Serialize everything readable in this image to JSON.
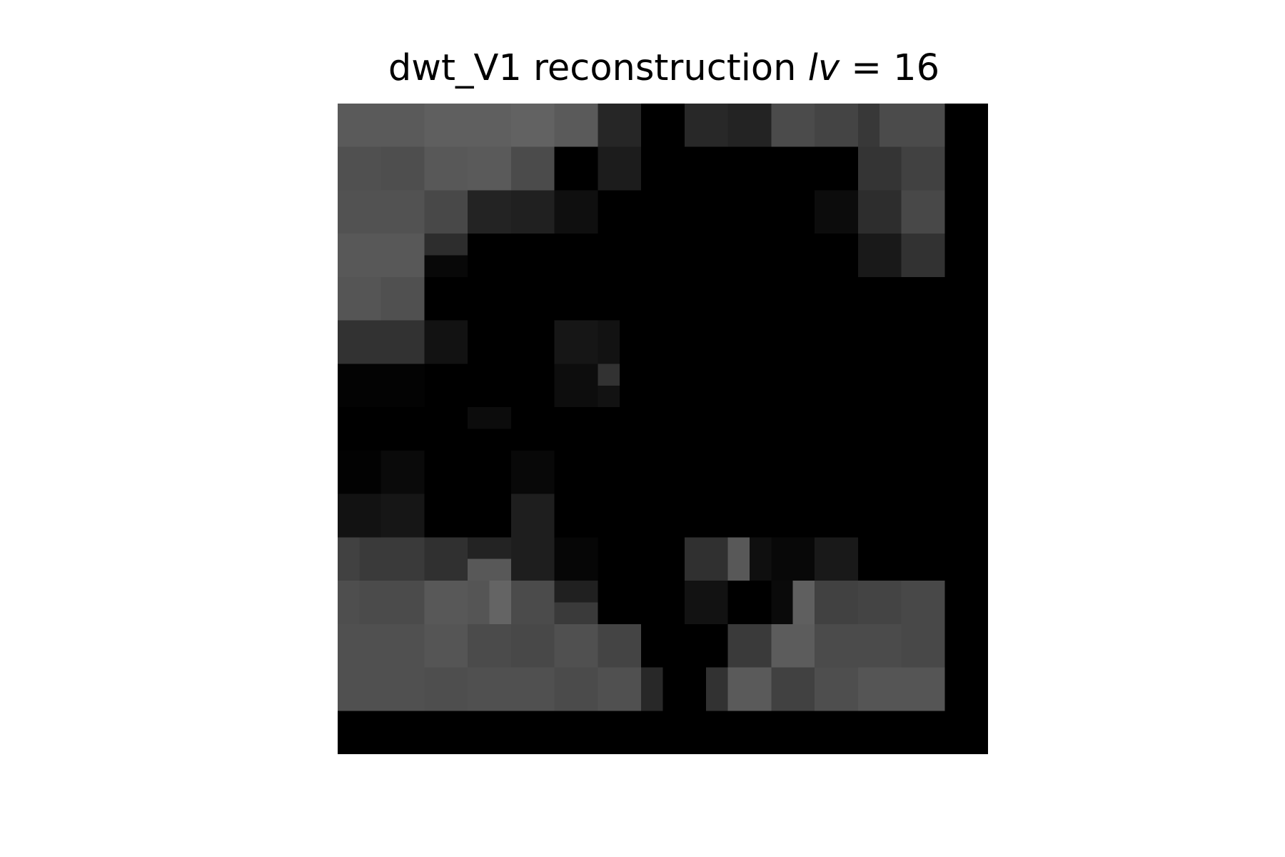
{
  "chart_data": {
    "type": "heatmap",
    "title": {
      "prefix": "dwt_V1 reconstruction ",
      "symbol": "lv",
      "relation": " = ",
      "value": "16"
    },
    "colormap": "gray",
    "axes": "off",
    "grid": false,
    "rows": 30,
    "cols": 30,
    "values": [
      [
        90,
        90,
        90,
        90,
        95,
        95,
        95,
        95,
        98,
        98,
        90,
        90,
        38,
        38,
        0,
        0,
        40,
        40,
        35,
        35,
        75,
        75,
        68,
        68,
        56,
        75,
        75,
        75,
        0,
        0
      ],
      [
        90,
        90,
        90,
        90,
        95,
        95,
        95,
        95,
        98,
        98,
        90,
        90,
        38,
        38,
        0,
        0,
        40,
        40,
        35,
        35,
        75,
        75,
        68,
        68,
        56,
        75,
        75,
        75,
        0,
        0
      ],
      [
        80,
        80,
        78,
        78,
        88,
        88,
        90,
        90,
        75,
        75,
        0,
        0,
        28,
        28,
        0,
        0,
        0,
        0,
        0,
        0,
        0,
        0,
        0,
        0,
        52,
        52,
        65,
        65,
        0,
        0
      ],
      [
        80,
        80,
        78,
        78,
        88,
        88,
        90,
        90,
        75,
        75,
        0,
        0,
        28,
        28,
        0,
        0,
        0,
        0,
        0,
        0,
        0,
        0,
        0,
        0,
        52,
        52,
        65,
        65,
        0,
        0
      ],
      [
        82,
        82,
        82,
        82,
        72,
        72,
        35,
        35,
        32,
        32,
        15,
        15,
        0,
        0,
        0,
        0,
        0,
        0,
        0,
        0,
        0,
        0,
        12,
        12,
        45,
        45,
        72,
        72,
        0,
        0
      ],
      [
        82,
        82,
        82,
        82,
        72,
        72,
        35,
        35,
        32,
        32,
        15,
        15,
        0,
        0,
        0,
        0,
        0,
        0,
        0,
        0,
        0,
        0,
        12,
        12,
        45,
        45,
        72,
        72,
        0,
        0
      ],
      [
        88,
        88,
        88,
        88,
        45,
        45,
        0,
        0,
        0,
        0,
        0,
        0,
        0,
        0,
        0,
        0,
        0,
        0,
        0,
        0,
        0,
        0,
        0,
        0,
        25,
        25,
        50,
        50,
        0,
        0
      ],
      [
        88,
        88,
        88,
        88,
        8,
        8,
        0,
        0,
        0,
        0,
        0,
        0,
        0,
        0,
        0,
        0,
        0,
        0,
        0,
        0,
        0,
        0,
        0,
        0,
        25,
        25,
        50,
        50,
        0,
        0
      ],
      [
        85,
        85,
        80,
        80,
        0,
        0,
        0,
        0,
        0,
        0,
        0,
        0,
        0,
        0,
        0,
        0,
        0,
        0,
        0,
        0,
        0,
        0,
        0,
        0,
        0,
        0,
        0,
        0,
        0,
        0
      ],
      [
        85,
        85,
        80,
        80,
        0,
        0,
        0,
        0,
        0,
        0,
        0,
        0,
        0,
        0,
        0,
        0,
        0,
        0,
        0,
        0,
        0,
        0,
        0,
        0,
        0,
        0,
        0,
        0,
        0,
        0
      ],
      [
        50,
        50,
        50,
        50,
        18,
        18,
        0,
        0,
        0,
        0,
        22,
        22,
        18,
        0,
        0,
        0,
        0,
        0,
        0,
        0,
        0,
        0,
        0,
        0,
        0,
        0,
        0,
        0,
        0,
        0
      ],
      [
        50,
        50,
        50,
        50,
        18,
        18,
        0,
        0,
        0,
        0,
        22,
        22,
        18,
        0,
        0,
        0,
        0,
        0,
        0,
        0,
        0,
        0,
        0,
        0,
        0,
        0,
        0,
        0,
        0,
        0
      ],
      [
        3,
        3,
        3,
        3,
        0,
        0,
        0,
        0,
        0,
        0,
        13,
        13,
        50,
        0,
        0,
        0,
        0,
        0,
        0,
        0,
        0,
        0,
        0,
        0,
        0,
        0,
        0,
        0,
        0,
        0
      ],
      [
        3,
        3,
        3,
        3,
        0,
        0,
        0,
        0,
        0,
        0,
        13,
        13,
        18,
        0,
        0,
        0,
        0,
        0,
        0,
        0,
        0,
        0,
        0,
        0,
        0,
        0,
        0,
        0,
        0,
        0
      ],
      [
        0,
        0,
        0,
        0,
        0,
        0,
        12,
        12,
        0,
        0,
        0,
        0,
        0,
        0,
        0,
        0,
        0,
        0,
        0,
        0,
        0,
        0,
        0,
        0,
        0,
        0,
        0,
        0,
        0,
        0
      ],
      [
        0,
        0,
        0,
        0,
        0,
        0,
        0,
        0,
        0,
        0,
        0,
        0,
        0,
        0,
        0,
        0,
        0,
        0,
        0,
        0,
        0,
        0,
        0,
        0,
        0,
        0,
        0,
        0,
        0,
        0
      ],
      [
        2,
        2,
        10,
        10,
        0,
        0,
        0,
        0,
        8,
        8,
        0,
        0,
        0,
        0,
        0,
        0,
        0,
        0,
        0,
        0,
        0,
        0,
        0,
        0,
        0,
        0,
        0,
        0,
        0,
        0
      ],
      [
        2,
        2,
        10,
        10,
        0,
        0,
        0,
        0,
        8,
        8,
        0,
        0,
        0,
        0,
        0,
        0,
        0,
        0,
        0,
        0,
        0,
        0,
        0,
        0,
        0,
        0,
        0,
        0,
        0,
        0
      ],
      [
        18,
        18,
        22,
        22,
        0,
        0,
        0,
        0,
        30,
        30,
        0,
        0,
        0,
        0,
        0,
        0,
        0,
        0,
        0,
        0,
        0,
        0,
        0,
        0,
        0,
        0,
        0,
        0,
        0,
        0
      ],
      [
        18,
        18,
        22,
        22,
        0,
        0,
        0,
        0,
        30,
        30,
        0,
        0,
        0,
        0,
        0,
        0,
        0,
        0,
        0,
        0,
        0,
        0,
        0,
        0,
        0,
        0,
        0,
        0,
        0,
        0
      ],
      [
        65,
        58,
        58,
        58,
        48,
        48,
        35,
        35,
        30,
        30,
        6,
        6,
        0,
        0,
        0,
        0,
        48,
        48,
        88,
        15,
        8,
        8,
        25,
        25,
        0,
        0,
        0,
        0,
        0,
        0
      ],
      [
        65,
        58,
        58,
        58,
        48,
        48,
        88,
        88,
        30,
        30,
        6,
        6,
        0,
        0,
        0,
        0,
        48,
        48,
        88,
        15,
        8,
        8,
        25,
        25,
        0,
        0,
        0,
        0,
        0,
        0
      ],
      [
        78,
        75,
        75,
        75,
        88,
        88,
        85,
        100,
        75,
        75,
        32,
        32,
        0,
        0,
        0,
        0,
        18,
        18,
        0,
        0,
        10,
        95,
        65,
        65,
        68,
        68,
        72,
        72,
        0,
        0
      ],
      [
        78,
        75,
        75,
        75,
        88,
        88,
        85,
        100,
        75,
        75,
        58,
        58,
        0,
        0,
        0,
        0,
        18,
        18,
        0,
        0,
        10,
        95,
        65,
        65,
        68,
        68,
        72,
        72,
        0,
        0
      ],
      [
        80,
        80,
        80,
        80,
        85,
        85,
        75,
        75,
        72,
        72,
        80,
        80,
        68,
        68,
        0,
        0,
        0,
        0,
        58,
        58,
        92,
        92,
        75,
        75,
        75,
        75,
        72,
        72,
        0,
        0
      ],
      [
        80,
        80,
        80,
        80,
        85,
        85,
        75,
        75,
        72,
        72,
        80,
        80,
        68,
        68,
        0,
        0,
        0,
        0,
        58,
        58,
        92,
        92,
        75,
        75,
        75,
        75,
        72,
        72,
        0,
        0
      ],
      [
        80,
        80,
        80,
        80,
        78,
        78,
        80,
        80,
        80,
        80,
        75,
        75,
        80,
        80,
        40,
        0,
        0,
        50,
        90,
        90,
        65,
        65,
        78,
        78,
        85,
        85,
        85,
        85,
        0,
        0
      ],
      [
        80,
        80,
        80,
        80,
        78,
        78,
        80,
        80,
        80,
        80,
        75,
        75,
        80,
        80,
        40,
        0,
        0,
        50,
        90,
        90,
        65,
        65,
        78,
        78,
        85,
        85,
        85,
        85,
        0,
        0
      ],
      [
        0,
        0,
        0,
        0,
        0,
        0,
        0,
        0,
        0,
        0,
        0,
        0,
        0,
        0,
        0,
        0,
        0,
        0,
        0,
        0,
        0,
        0,
        0,
        0,
        0,
        0,
        0,
        0,
        0,
        0
      ],
      [
        0,
        0,
        0,
        0,
        0,
        0,
        0,
        0,
        0,
        0,
        0,
        0,
        0,
        0,
        0,
        0,
        0,
        0,
        0,
        0,
        0,
        0,
        0,
        0,
        0,
        0,
        0,
        0,
        0,
        0
      ]
    ]
  }
}
